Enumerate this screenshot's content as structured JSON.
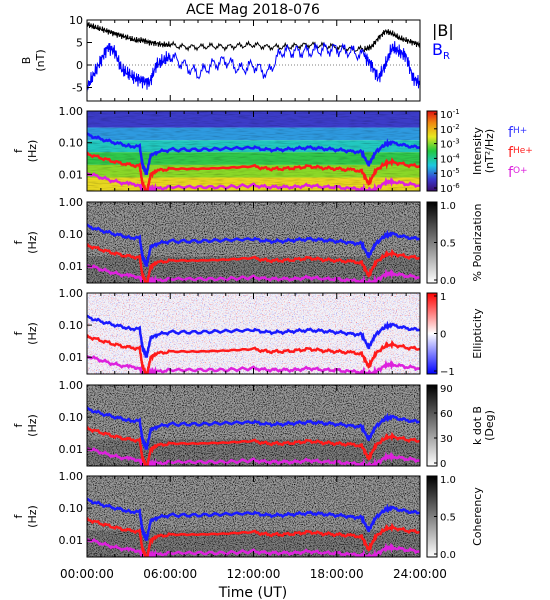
{
  "title": "ACE Mag 2018-076",
  "time_axis": {
    "label": "Time (UT)",
    "ticks": [
      "00:00:00",
      "06:00:00",
      "12:00:00",
      "18:00:00",
      "24:00:00"
    ],
    "range_hours": [
      0,
      24
    ]
  },
  "chart_data": [
    {
      "type": "line",
      "ylabel": "B\n(nT)",
      "ylim": [
        -8,
        10
      ],
      "yticks": [
        "10",
        "5",
        "0",
        "-5"
      ],
      "legend": {
        "placement": "top-right",
        "entries": [
          {
            "name": "|B|",
            "color": "#000000"
          },
          {
            "name": "B",
            "subscript": "R",
            "color": "#0000ff"
          }
        ]
      },
      "x_hours": [
        0,
        0.5,
        1,
        1.5,
        2,
        2.5,
        3,
        3.5,
        4,
        4.5,
        5,
        5.5,
        6,
        7,
        8,
        9,
        10,
        11,
        12,
        13,
        14,
        15,
        16,
        17,
        18,
        19,
        20,
        20.5,
        21,
        21.5,
        22,
        22.5,
        23,
        23.5,
        24
      ],
      "series": [
        {
          "name": "|B|",
          "color": "#000000",
          "values": [
            9,
            8.5,
            8,
            7.5,
            7,
            6.5,
            6,
            5.5,
            5.5,
            5,
            4.8,
            4.5,
            4.5,
            4,
            4,
            4.2,
            4,
            4.3,
            4.5,
            4,
            4,
            4.2,
            4.5,
            4.3,
            4,
            3.5,
            3.5,
            4,
            6,
            7.5,
            7,
            6,
            5.5,
            5,
            4.5
          ]
        },
        {
          "name": "B",
          "subscript": "R",
          "color": "#0000ff",
          "values": [
            -5,
            -2,
            1,
            4,
            3,
            -1,
            -2,
            -3,
            -3.5,
            -4,
            0,
            1,
            2,
            0,
            -2,
            0,
            1,
            -1,
            0,
            -2,
            3,
            3,
            3,
            3.5,
            3.5,
            3,
            2,
            0,
            -3,
            0,
            4,
            3,
            2,
            -3,
            -4
          ]
        }
      ]
    },
    {
      "type": "heatmap",
      "ylabel": "f\n(Hz)",
      "yscale": "log",
      "ylim": [
        0.003,
        1.0
      ],
      "yticks": [
        "1.00",
        "0.10",
        "0.01"
      ],
      "colormap": "rainbow",
      "colorbar": {
        "label": "Intensity\n(nT²/Hz)",
        "ticks": [
          {
            "mant": "10",
            "exp": "-1"
          },
          {
            "mant": "10",
            "exp": "-2"
          },
          {
            "mant": "10",
            "exp": "-3"
          },
          {
            "mant": "10",
            "exp": "-4"
          },
          {
            "mant": "10",
            "exp": "-5"
          },
          {
            "mant": "10",
            "exp": "-6"
          }
        ]
      },
      "gyro_legend": [
        {
          "base": "f",
          "sub": "H+",
          "color": "#3333ff"
        },
        {
          "base": "f",
          "sub": "He+",
          "color": "#ff2020"
        },
        {
          "base": "f",
          "sub": "O+",
          "color": "#dd22dd"
        }
      ]
    },
    {
      "type": "heatmap",
      "ylabel": "f\n(Hz)",
      "yscale": "log",
      "ylim": [
        0.003,
        1.0
      ],
      "yticks": [
        "1.00",
        "0.10",
        "0.01"
      ],
      "colormap": "gray",
      "colorbar": {
        "label": "% Polarization",
        "ticks": [
          "1.0",
          "0.5",
          "0.0"
        ]
      }
    },
    {
      "type": "heatmap",
      "ylabel": "f\n(Hz)",
      "yscale": "log",
      "ylim": [
        0.003,
        1.0
      ],
      "yticks": [
        "1.00",
        "0.10",
        "0.01"
      ],
      "colormap": "blue-white-red",
      "colorbar": {
        "label": "Ellipticity",
        "ticks": [
          "1",
          "0",
          "−1"
        ]
      }
    },
    {
      "type": "heatmap",
      "ylabel": "f\n(Hz)",
      "yscale": "log",
      "ylim": [
        0.003,
        1.0
      ],
      "yticks": [
        "1.00",
        "0.10",
        "0.01"
      ],
      "colormap": "gray",
      "colorbar": {
        "label": "k dot B\n(Deg)",
        "ticks": [
          "90",
          "60",
          "30",
          "0"
        ]
      }
    },
    {
      "type": "heatmap",
      "ylabel": "f\n(Hz)",
      "yscale": "log",
      "ylim": [
        0.003,
        1.0
      ],
      "yticks": [
        "1.00",
        "0.10",
        "0.01"
      ],
      "colormap": "gray",
      "colorbar": {
        "label": "Coherency",
        "ticks": [
          "1.0",
          "0.5",
          "0.0"
        ]
      }
    }
  ],
  "gyrofrequency_lines": {
    "x_hours": [
      0,
      1,
      2,
      3,
      3.8,
      4.0,
      4.3,
      4.6,
      5,
      6,
      8,
      10,
      12,
      13,
      14,
      15,
      16,
      17,
      18,
      19,
      19.8,
      20.3,
      20.8,
      21.5,
      22,
      23,
      24
    ],
    "f_H_plus": [
      0.18,
      0.13,
      0.1,
      0.08,
      0.075,
      0.02,
      0.01,
      0.04,
      0.05,
      0.06,
      0.06,
      0.065,
      0.07,
      0.06,
      0.06,
      0.065,
      0.07,
      0.065,
      0.06,
      0.055,
      0.05,
      0.02,
      0.05,
      0.09,
      0.1,
      0.08,
      0.07
    ],
    "f_He_plus": [
      0.045,
      0.033,
      0.025,
      0.02,
      0.019,
      0.005,
      0.0025,
      0.01,
      0.013,
      0.015,
      0.015,
      0.016,
      0.018,
      0.015,
      0.015,
      0.016,
      0.018,
      0.016,
      0.015,
      0.014,
      0.013,
      0.005,
      0.013,
      0.022,
      0.025,
      0.02,
      0.018
    ],
    "f_O_plus": [
      0.011,
      0.008,
      0.006,
      0.005,
      0.0047,
      0.003,
      0.003,
      0.0035,
      0.0035,
      0.004,
      0.004,
      0.004,
      0.0045,
      0.004,
      0.004,
      0.004,
      0.0045,
      0.004,
      0.004,
      0.0035,
      0.0035,
      0.003,
      0.0035,
      0.0055,
      0.006,
      0.005,
      0.0045
    ]
  }
}
